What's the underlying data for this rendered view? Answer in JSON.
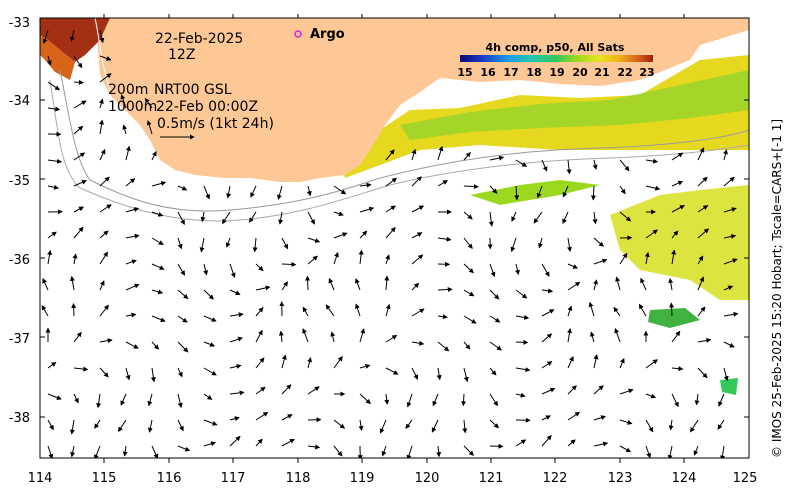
{
  "map": {
    "date_line": "22-Feb-2025",
    "time_line": "12Z",
    "argo_label": "Argo",
    "depth_200": "200m",
    "depth_1000": "1000m",
    "nrt_label": "NRT00 GSL",
    "nrt_time": "22-Feb 00:00Z",
    "speed_scale": "0.5m/s (1kt 24h)",
    "credit": "© IMOS 25-Feb-2025 15:20 Hobart; Tscale=CARS+[-1 1]"
  },
  "colorbar": {
    "title": "4h comp, p50, All Sats",
    "ticks": [
      "15",
      "16",
      "17",
      "18",
      "19",
      "20",
      "21",
      "22",
      "23"
    ],
    "colors": [
      "#0a0a78",
      "#1b3ec9",
      "#1e9ae6",
      "#25c7b4",
      "#34c75a",
      "#9bd81f",
      "#e6e41c",
      "#f0b41c",
      "#d8641a",
      "#a02010"
    ]
  },
  "axes": {
    "lon_ticks": [
      "114",
      "115",
      "116",
      "117",
      "118",
      "119",
      "120",
      "121",
      "122",
      "123",
      "124",
      "125"
    ],
    "lat_ticks": [
      "-33",
      "-34",
      "-35",
      "-36",
      "-37",
      "-38"
    ]
  },
  "colors": {
    "land": "#fdc896",
    "sst_warm": "#e6d81e",
    "sst_green": "#8ed42c",
    "sst_hot": "#a33015",
    "argo": "#e81ed2"
  }
}
